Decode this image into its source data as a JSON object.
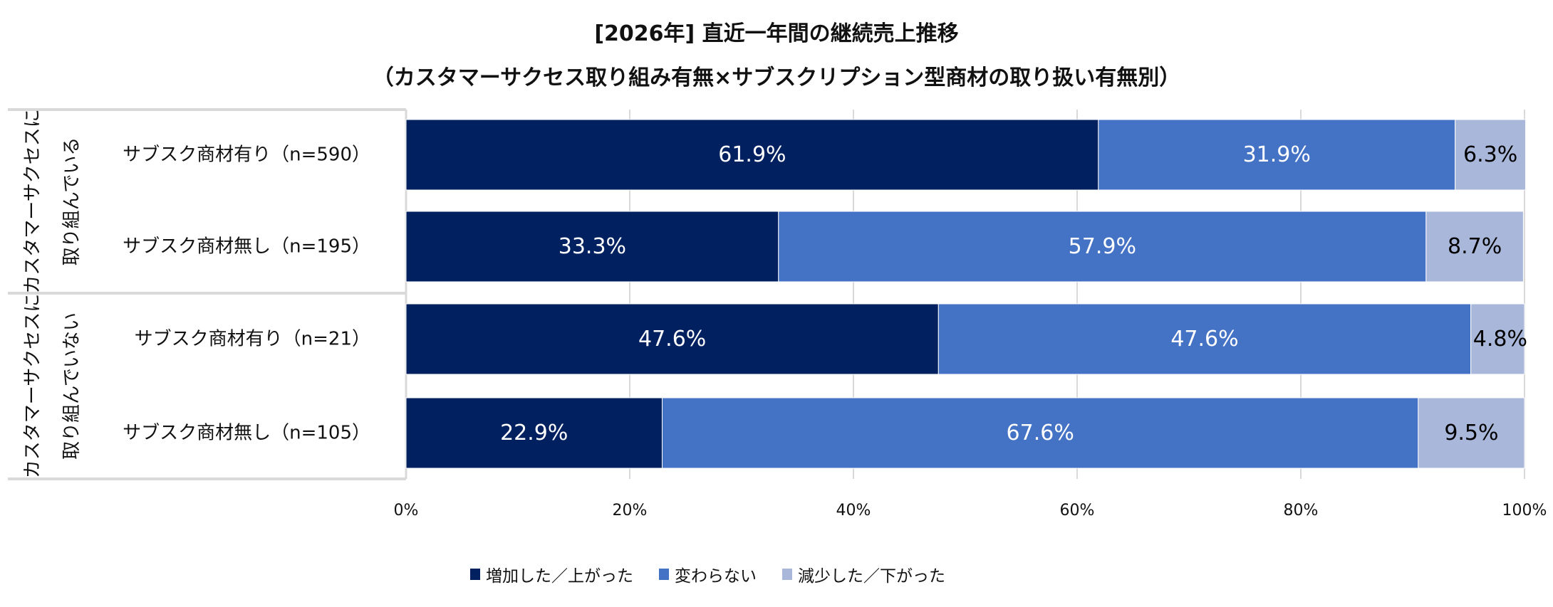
{
  "chart_data": {
    "type": "bar",
    "orientation": "horizontal",
    "stacked": "100%",
    "title": "[2026年] 直近一年間の継続売上推移",
    "subtitle": "（カスタマーサクセス取り組み有無×サブスクリプション型商材の取り扱い有無別）",
    "groups": [
      {
        "label": "カスタマーサクセスに取り組んでいる",
        "lines": [
          "カスタマーサクセスに",
          "取り組んでいる"
        ]
      },
      {
        "label": "カスタマーサクセスに取り組んでいない",
        "lines": [
          "カスタマーサクセスに",
          "取り組んでいない"
        ]
      }
    ],
    "categories": [
      "サブスク商材有り（n=590）",
      "サブスク商材無し（n=195）",
      "サブスク商材有り（n=21）",
      "サブスク商材無し（n=105）"
    ],
    "category_group": [
      0,
      0,
      1,
      1
    ],
    "series": [
      {
        "name": "増加した／上がった",
        "color": "#002060",
        "values": [
          61.9,
          33.3,
          47.6,
          22.9
        ],
        "labels": [
          "61.9%",
          "33.3%",
          "47.6%",
          "22.9%"
        ]
      },
      {
        "name": "変わらない",
        "color": "#4472C4",
        "values": [
          31.9,
          57.9,
          47.6,
          67.6
        ],
        "labels": [
          "31.9%",
          "57.9%",
          "47.6%",
          "67.6%"
        ]
      },
      {
        "name": "減少した／下がった",
        "color": "#A9B7DB",
        "values": [
          6.3,
          8.7,
          4.8,
          9.5
        ],
        "labels": [
          "6.3%",
          "8.7%",
          "4.8%",
          "9.5%"
        ]
      }
    ],
    "xlim": [
      0,
      100
    ],
    "xticks": [
      "0%",
      "20%",
      "40%",
      "60%",
      "80%",
      "100%"
    ],
    "grid": true,
    "legend_position": "bottom"
  }
}
